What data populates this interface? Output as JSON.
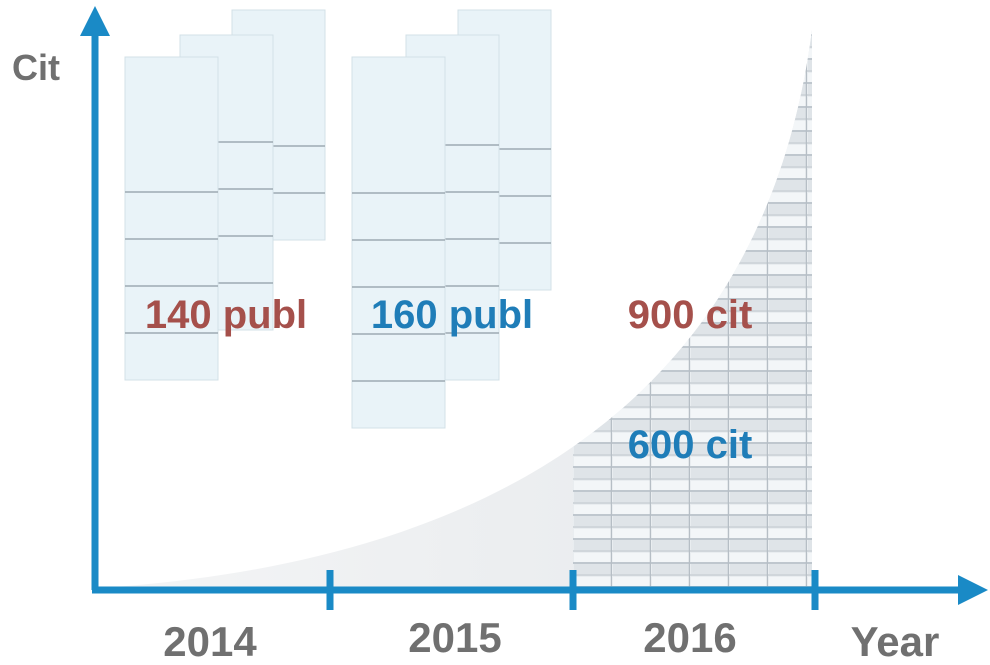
{
  "axes": {
    "y_label": "Cit",
    "x_label": "Year"
  },
  "years": [
    "2014",
    "2015",
    "2016"
  ],
  "annotations": {
    "publ_2014": "140 publ",
    "publ_2015": "160 publ",
    "cit_high": "900 cit",
    "cit_low": "600 cit"
  }
}
